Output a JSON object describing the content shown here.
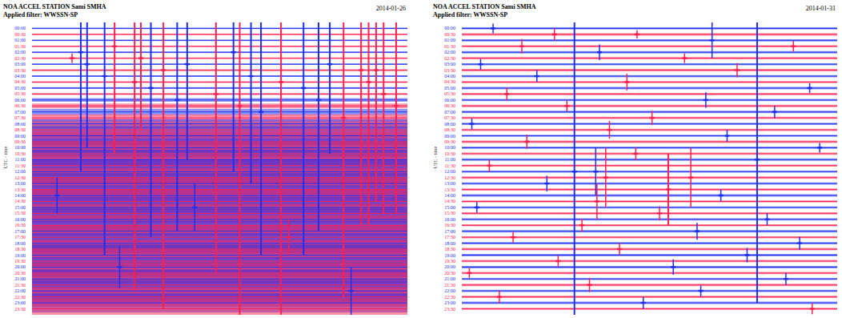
{
  "chart_data": [
    {
      "type": "helicorder",
      "title": "NOA ACCEL STATION Sami SMHA",
      "subtitle": "Applied filter: WWSSN-SP",
      "date": "2014-01-26",
      "y_label": "UTC - time",
      "tick_labels": "y",
      "colors": [
        "#1e2ff0",
        "#ff2050"
      ],
      "xlim": [
        0,
        30
      ],
      "ylim": [
        -1,
        48
      ],
      "yticks": [
        {
          "value": 0,
          "label": "00:00"
        },
        {
          "value": 1,
          "label": "00:30"
        },
        {
          "value": 2,
          "label": "01:00"
        },
        {
          "value": 3,
          "label": "01:30"
        },
        {
          "value": 4,
          "label": "02:00"
        },
        {
          "value": 5,
          "label": "02:30"
        },
        {
          "value": 6,
          "label": "03:00"
        },
        {
          "value": 7,
          "label": "03:30"
        },
        {
          "value": 8,
          "label": "04:00"
        },
        {
          "value": 9,
          "label": "04:30"
        },
        {
          "value": 10,
          "label": "05:00"
        },
        {
          "value": 11,
          "label": "05:30"
        },
        {
          "value": 12,
          "label": "06:00"
        },
        {
          "value": 13,
          "label": "06:30"
        },
        {
          "value": 14,
          "label": "07:00"
        },
        {
          "value": 15,
          "label": "07:30"
        },
        {
          "value": 16,
          "label": "08:00"
        },
        {
          "value": 17,
          "label": "08:30"
        },
        {
          "value": 18,
          "label": "09:00"
        },
        {
          "value": 19,
          "label": "09:30"
        },
        {
          "value": 20,
          "label": "10:00"
        },
        {
          "value": 21,
          "label": "10:30"
        },
        {
          "value": 22,
          "label": "11:00"
        },
        {
          "value": 23,
          "label": "11:30"
        },
        {
          "value": 24,
          "label": "12:00"
        },
        {
          "value": 25,
          "label": "12:30"
        },
        {
          "value": 26,
          "label": "13:00"
        },
        {
          "value": 27,
          "label": "13:30"
        },
        {
          "value": 28,
          "label": "14:00"
        },
        {
          "value": 29,
          "label": "14:30"
        },
        {
          "value": 30,
          "label": "15:00"
        },
        {
          "value": 31,
          "label": "15:30"
        },
        {
          "value": 32,
          "label": "16:00"
        },
        {
          "value": 33,
          "label": "16:30"
        },
        {
          "value": 34,
          "label": "17:00"
        },
        {
          "value": 35,
          "label": "17:30"
        },
        {
          "value": 36,
          "label": "18:00"
        },
        {
          "value": 37,
          "label": "18:30"
        },
        {
          "value": 38,
          "label": "19:00"
        },
        {
          "value": 39,
          "label": "19:30"
        },
        {
          "value": 40,
          "label": "20:00"
        },
        {
          "value": 41,
          "label": "20:30"
        },
        {
          "value": 42,
          "label": "21:00"
        },
        {
          "value": 43,
          "label": "21:30"
        },
        {
          "value": 44,
          "label": "22:00"
        },
        {
          "value": 45,
          "label": "22:30"
        },
        {
          "value": 46,
          "label": "23:00"
        },
        {
          "value": 47,
          "label": "23:30"
        }
      ],
      "noise": [
        0.12,
        0.12,
        0.12,
        0.12,
        0.12,
        0.12,
        0.12,
        0.14,
        0.14,
        0.14,
        0.15,
        0.15,
        0.3,
        0.4,
        0.5,
        0.6,
        0.8,
        1.4,
        1.6,
        1.8,
        1.6,
        1.9,
        1.7,
        1.8,
        2.0,
        1.6,
        1.8,
        1.9,
        1.7,
        2.0,
        1.8,
        1.6,
        1.9,
        1.7,
        1.8,
        2.0,
        1.7,
        1.6,
        1.8,
        1.9,
        1.7,
        1.8,
        1.6,
        1.9,
        1.8,
        1.7,
        1.6,
        1.8
      ],
      "events": [
        [
          5,
          3.2,
          0.8
        ],
        [
          4,
          3.9,
          20
        ],
        [
          6,
          4.4,
          14
        ],
        [
          8,
          5.8,
          30
        ],
        [
          3,
          6.6,
          18
        ],
        [
          9,
          8.2,
          35
        ],
        [
          5,
          8.7,
          12
        ],
        [
          10,
          9.5,
          25
        ],
        [
          7,
          10.5,
          40
        ],
        [
          12,
          11.6,
          22
        ],
        [
          6,
          12.4,
          16
        ],
        [
          11,
          14.7,
          30
        ],
        [
          4,
          16.1,
          20
        ],
        [
          13,
          16.6,
          36
        ],
        [
          8,
          17.5,
          18
        ],
        [
          14,
          18.3,
          24
        ],
        [
          9,
          19.9,
          40
        ],
        [
          10,
          21.7,
          28
        ],
        [
          12,
          22.9,
          22
        ],
        [
          6,
          23.8,
          15
        ],
        [
          15,
          24.9,
          30
        ],
        [
          7,
          26.3,
          26
        ],
        [
          9,
          26.9,
          24
        ],
        [
          7,
          27.5,
          22
        ],
        [
          11,
          28.1,
          20
        ],
        [
          13,
          29.1,
          18
        ],
        [
          30,
          13.0,
          4
        ],
        [
          35,
          20.5,
          3
        ],
        [
          40,
          7.0,
          3.5
        ],
        [
          44,
          25.5,
          4
        ],
        [
          28,
          2.0,
          3
        ]
      ]
    },
    {
      "type": "helicorder",
      "title": "NOA ACCEL STATION Sami SMHA",
      "subtitle": "Applied filter: WWSSN-SP",
      "date": "2014-01-31",
      "y_label": "UTC - time",
      "tick_labels": "y",
      "colors": [
        "#1e2ff0",
        "#ff2050"
      ],
      "xlim": [
        0,
        30
      ],
      "ylim": [
        -1,
        48
      ],
      "yticks": [
        {
          "value": 0,
          "label": "00:00"
        },
        {
          "value": 1,
          "label": "00:30"
        },
        {
          "value": 2,
          "label": "01:00"
        },
        {
          "value": 3,
          "label": "01:30"
        },
        {
          "value": 4,
          "label": "02:00"
        },
        {
          "value": 5,
          "label": "02:30"
        },
        {
          "value": 6,
          "label": "03:00"
        },
        {
          "value": 7,
          "label": "03:30"
        },
        {
          "value": 8,
          "label": "04:00"
        },
        {
          "value": 9,
          "label": "04:30"
        },
        {
          "value": 10,
          "label": "05:00"
        },
        {
          "value": 11,
          "label": "05:30"
        },
        {
          "value": 12,
          "label": "06:00"
        },
        {
          "value": 13,
          "label": "06:30"
        },
        {
          "value": 14,
          "label": "07:00"
        },
        {
          "value": 15,
          "label": "07:30"
        },
        {
          "value": 16,
          "label": "08:00"
        },
        {
          "value": 17,
          "label": "08:30"
        },
        {
          "value": 18,
          "label": "09:00"
        },
        {
          "value": 19,
          "label": "09:30"
        },
        {
          "value": 20,
          "label": "10:00"
        },
        {
          "value": 21,
          "label": "10:30"
        },
        {
          "value": 22,
          "label": "11:00"
        },
        {
          "value": 23,
          "label": "11:30"
        },
        {
          "value": 24,
          "label": "12:00"
        },
        {
          "value": 25,
          "label": "12:30"
        },
        {
          "value": 26,
          "label": "13:00"
        },
        {
          "value": 27,
          "label": "13:30"
        },
        {
          "value": 28,
          "label": "14:00"
        },
        {
          "value": 29,
          "label": "14:30"
        },
        {
          "value": 30,
          "label": "15:00"
        },
        {
          "value": 31,
          "label": "15:30"
        },
        {
          "value": 32,
          "label": "16:00"
        },
        {
          "value": 33,
          "label": "16:30"
        },
        {
          "value": 34,
          "label": "17:00"
        },
        {
          "value": 35,
          "label": "17:30"
        },
        {
          "value": 36,
          "label": "18:00"
        },
        {
          "value": 37,
          "label": "18:30"
        },
        {
          "value": 38,
          "label": "19:00"
        },
        {
          "value": 39,
          "label": "19:30"
        },
        {
          "value": 40,
          "label": "20:00"
        },
        {
          "value": 41,
          "label": "20:30"
        },
        {
          "value": 42,
          "label": "21:00"
        },
        {
          "value": 43,
          "label": "21:30"
        },
        {
          "value": 44,
          "label": "22:00"
        },
        {
          "value": 45,
          "label": "22:30"
        },
        {
          "value": 46,
          "label": "23:00"
        },
        {
          "value": 47,
          "label": "23:30"
        }
      ],
      "noise": [
        0.18,
        0.2,
        0.18,
        0.16,
        0.2,
        0.18,
        0.17,
        0.2,
        0.19,
        0.18,
        0.2,
        0.17,
        0.18,
        0.2,
        0.19,
        0.18,
        0.2,
        0.18,
        0.17,
        0.2,
        0.19,
        0.18,
        0.2,
        0.17,
        0.18,
        0.2,
        0.19,
        0.18,
        0.2,
        0.18,
        0.17,
        0.2,
        0.19,
        0.18,
        0.2,
        0.17,
        0.18,
        0.2,
        0.19,
        0.18,
        0.2,
        0.18,
        0.17,
        0.2,
        0.19,
        0.18,
        0.2,
        0.17
      ],
      "events": [
        [
          24,
          9.0,
          26
        ],
        [
          22,
          23.6,
          24
        ],
        [
          27,
          16.5,
          6
        ],
        [
          25,
          18.3,
          5
        ],
        [
          24,
          10.7,
          4
        ],
        [
          2,
          20.0,
          3
        ],
        [
          25,
          11.5,
          5
        ],
        [
          29,
          10.8,
          3
        ],
        [
          0,
          2.5,
          0.8
        ],
        [
          1,
          7.4,
          1.0
        ],
        [
          1,
          14.0,
          0.7
        ],
        [
          3,
          4.8,
          1.2
        ],
        [
          3,
          26.5,
          0.9
        ],
        [
          4,
          11.0,
          1.3
        ],
        [
          5,
          17.8,
          0.8
        ],
        [
          6,
          1.5,
          0.9
        ],
        [
          7,
          22.0,
          1.2
        ],
        [
          8,
          6.0,
          1.0
        ],
        [
          9,
          13.2,
          1.4
        ],
        [
          10,
          27.8,
          0.8
        ],
        [
          11,
          3.6,
          1.1
        ],
        [
          12,
          19.5,
          1.3
        ],
        [
          13,
          8.4,
          0.9
        ],
        [
          14,
          25.0,
          1.0
        ],
        [
          15,
          15.2,
          1.2
        ],
        [
          16,
          0.8,
          0.9
        ],
        [
          17,
          11.8,
          1.5
        ],
        [
          18,
          21.2,
          1.0
        ],
        [
          19,
          5.2,
          1.2
        ],
        [
          20,
          28.6,
          0.8
        ],
        [
          21,
          13.9,
          1.1
        ],
        [
          23,
          2.2,
          1.0
        ],
        [
          26,
          6.8,
          1.3
        ],
        [
          28,
          20.7,
          1.0
        ],
        [
          30,
          1.2,
          0.9
        ],
        [
          31,
          15.8,
          1.2
        ],
        [
          32,
          24.4,
          1.0
        ],
        [
          33,
          9.6,
          1.1
        ],
        [
          34,
          18.8,
          1.4
        ],
        [
          35,
          4.1,
          0.9
        ],
        [
          36,
          27.0,
          1.1
        ],
        [
          37,
          12.6,
          1.0
        ],
        [
          38,
          22.8,
          1.2
        ],
        [
          39,
          7.7,
          0.9
        ],
        [
          40,
          16.9,
          1.3
        ],
        [
          41,
          0.6,
          0.8
        ],
        [
          42,
          25.9,
          1.0
        ],
        [
          43,
          10.2,
          1.2
        ],
        [
          44,
          19.1,
          0.9
        ],
        [
          45,
          3.0,
          1.1
        ],
        [
          46,
          14.5,
          1.0
        ],
        [
          47,
          28.0,
          0.9
        ]
      ]
    }
  ]
}
